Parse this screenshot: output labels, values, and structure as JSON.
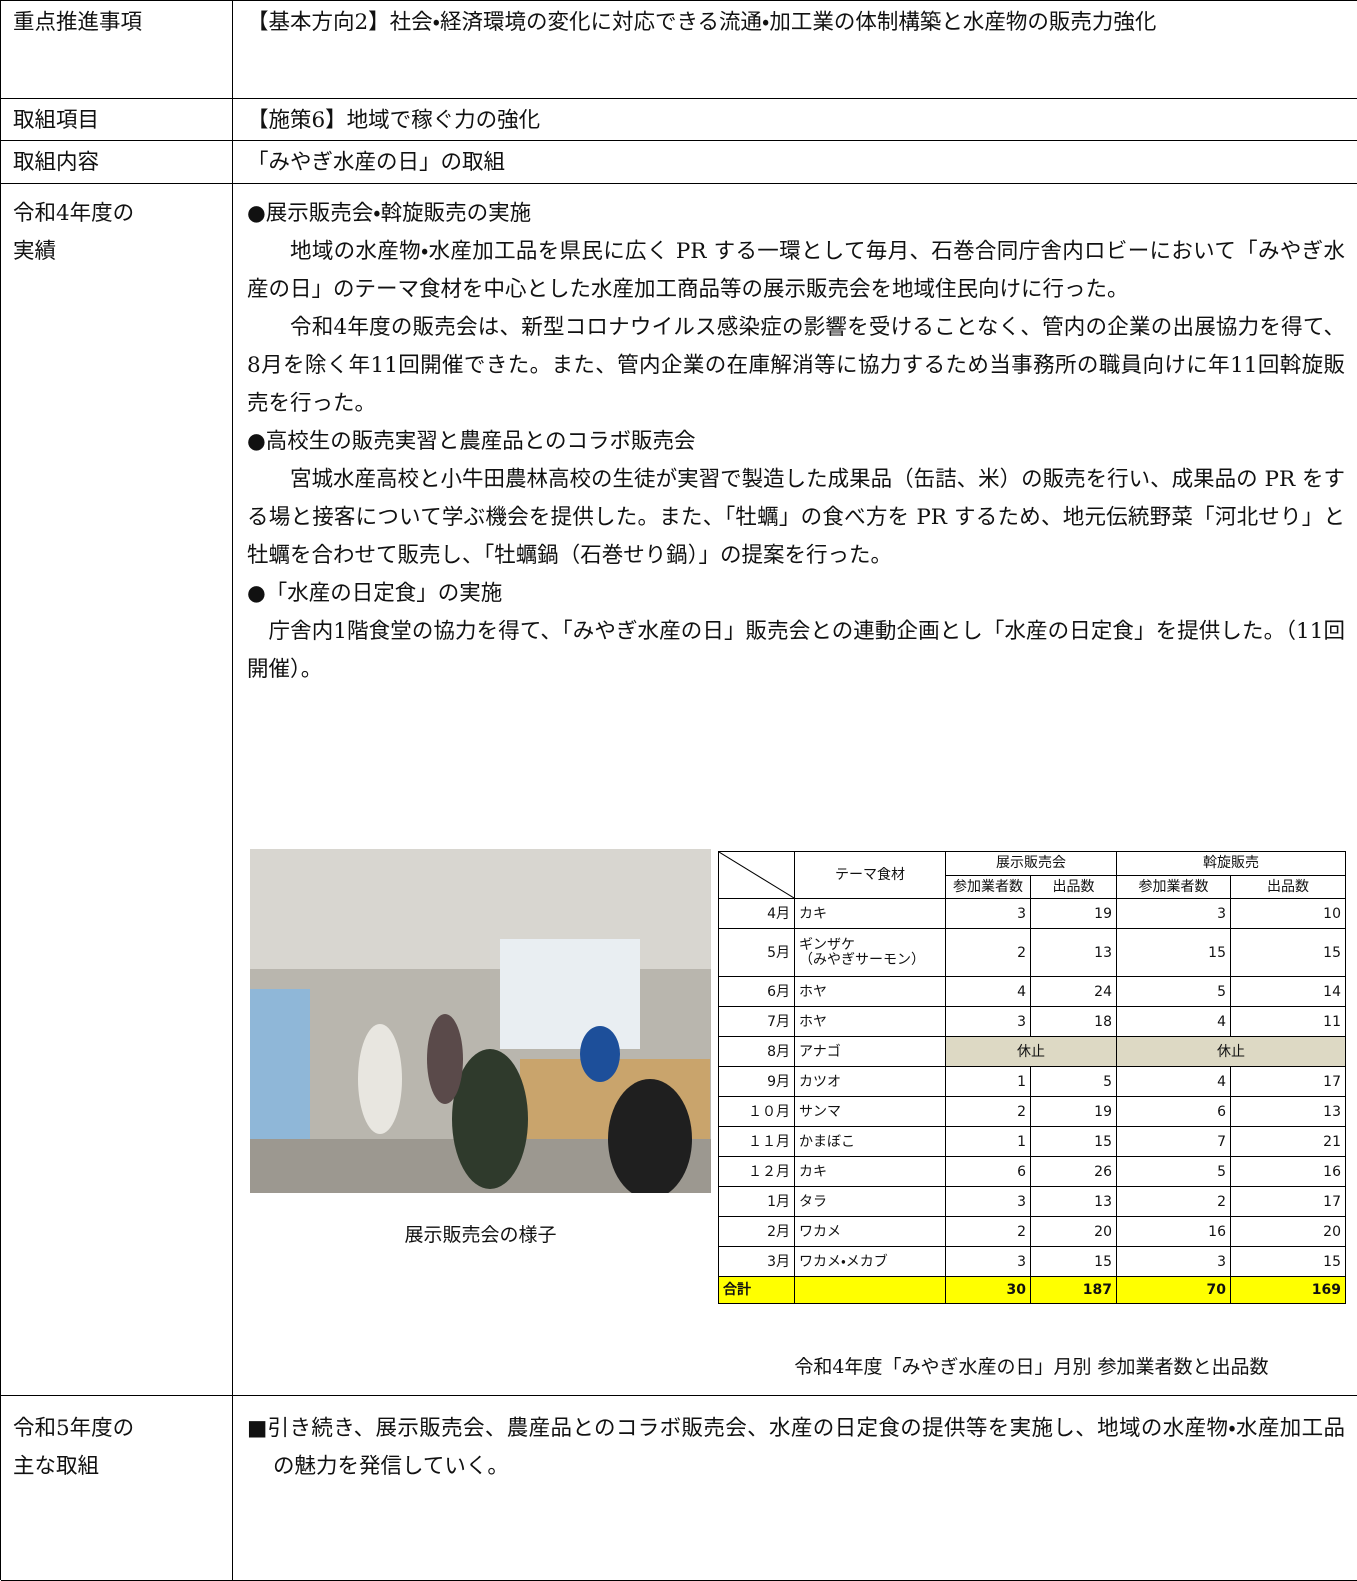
{
  "rows": [
    {
      "label": "重点推進事項",
      "content": "【基本方向2】社会・経済環境の変化に対応できる流通・加工業の体制構築と水産物の販売力強化"
    },
    {
      "label": "取組項目",
      "content": "【施策6】地域で稼ぐ力の強化"
    },
    {
      "label": "取組内容",
      "content": "「みやぎ水産の日」の取組"
    }
  ],
  "results": {
    "label": "令和4年度の\n実績",
    "sections": [
      {
        "heading": "●展示販売会・斡旋販売の実施",
        "paragraphs": [
          "地域の水産物・水産加工品を県民に広く PR する一環として毎月、石巻合同庁舎内ロビーにおいて「みやぎ水産の日」のテーマ食材を中心とした水産加工商品等の展示販売会を地域住民向けに行った。",
          "令和4年度の販売会は、新型コロナウイルス感染症の影響を受けることなく、管内の企業の出展協力を得て、8月を除く年11回開催できた。また、管内企業の在庫解消等に協力するため当事務所の職員向けに年11回斡旋販売を行った。"
        ]
      },
      {
        "heading": "●高校生の販売実習と農産品とのコラボ販売会",
        "paragraphs": [
          "宮城水産高校と小牛田農林高校の生徒が実習で製造した成果品（缶詰、米）の販売を行い、成果品の PR をする場と接客について学ぶ機会を提供した。また、「牡蠣」の食べ方を PR するため、地元伝統野菜「河北せり」と牡蠣を合わせて販売し、「牡蠣鍋（石巻せり鍋）」の提案を行った。"
        ]
      },
      {
        "heading": "●「水産の日定食」の実施",
        "paragraphs": [
          "庁舎内1階食堂の協力を得て、「みやぎ水産の日」販売会との連動企画とし「水産の日定食」を提供した。（11回開催）。"
        ]
      }
    ],
    "photo_caption": "展示販売会の様子",
    "table": {
      "caption": "令和4年度「みやぎ水産の日」月別 参加業者数と出品数",
      "theme_header": "テーマ食材",
      "groups": [
        "展示販売会",
        "斡旋販売"
      ],
      "subcolumns": [
        "参加業者数",
        "出品数",
        "参加業者数",
        "出品数"
      ],
      "rows": [
        [
          "4月",
          "カキ",
          3,
          19,
          3,
          10
        ],
        [
          "5月",
          "ギンザケ\n（みやぎサーモン）",
          2,
          13,
          15,
          15
        ],
        [
          "6月",
          "ホヤ",
          4,
          24,
          5,
          14
        ],
        [
          "7月",
          "ホヤ",
          3,
          18,
          4,
          11
        ],
        [
          "8月",
          "アナゴ",
          "休止",
          "休止"
        ],
        [
          "9月",
          "カツオ",
          1,
          5,
          4,
          17
        ],
        [
          "１０月",
          "サンマ",
          2,
          19,
          6,
          13
        ],
        [
          "１１月",
          "かまぼこ",
          1,
          15,
          7,
          21
        ],
        [
          "１２月",
          "カキ",
          6,
          26,
          5,
          16
        ],
        [
          "1月",
          "タラ",
          3,
          13,
          2,
          17
        ],
        [
          "2月",
          "ワカメ",
          2,
          20,
          16,
          20
        ],
        [
          "3月",
          "ワカメ・メカブ",
          3,
          15,
          3,
          15
        ]
      ],
      "total": {
        "label": "合計",
        "values": [
          30,
          187,
          70,
          169
        ]
      }
    }
  },
  "plans": {
    "label": "令和5年度の\n主な取組",
    "content": "■引き続き、展示販売会、農産品とのコラボ販売会、水産の日定食の提供等を実施し、地域の水産物・水産加工品の魅力を発信していく。"
  }
}
